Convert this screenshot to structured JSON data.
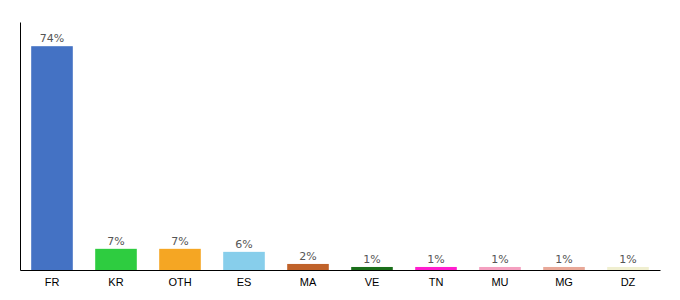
{
  "chart_data": {
    "type": "bar",
    "categories": [
      "FR",
      "KR",
      "OTH",
      "ES",
      "MA",
      "VE",
      "TN",
      "MU",
      "MG",
      "DZ"
    ],
    "values": [
      74,
      7,
      7,
      6,
      2,
      1,
      1,
      1,
      1,
      1
    ],
    "value_labels": [
      "74%",
      "7%",
      "7%",
      "6%",
      "2%",
      "1%",
      "1%",
      "1%",
      "1%",
      "1%"
    ],
    "colors": [
      "#4472c4",
      "#2ecc40",
      "#f5a623",
      "#87ceeb",
      "#c0622a",
      "#1a6e1a",
      "#ff1dce",
      "#f4a0c0",
      "#e8a898",
      "#f0efd0"
    ],
    "ylim": [
      0,
      82
    ],
    "data_labels": true,
    "tick_labels": "x",
    "grid": false
  }
}
